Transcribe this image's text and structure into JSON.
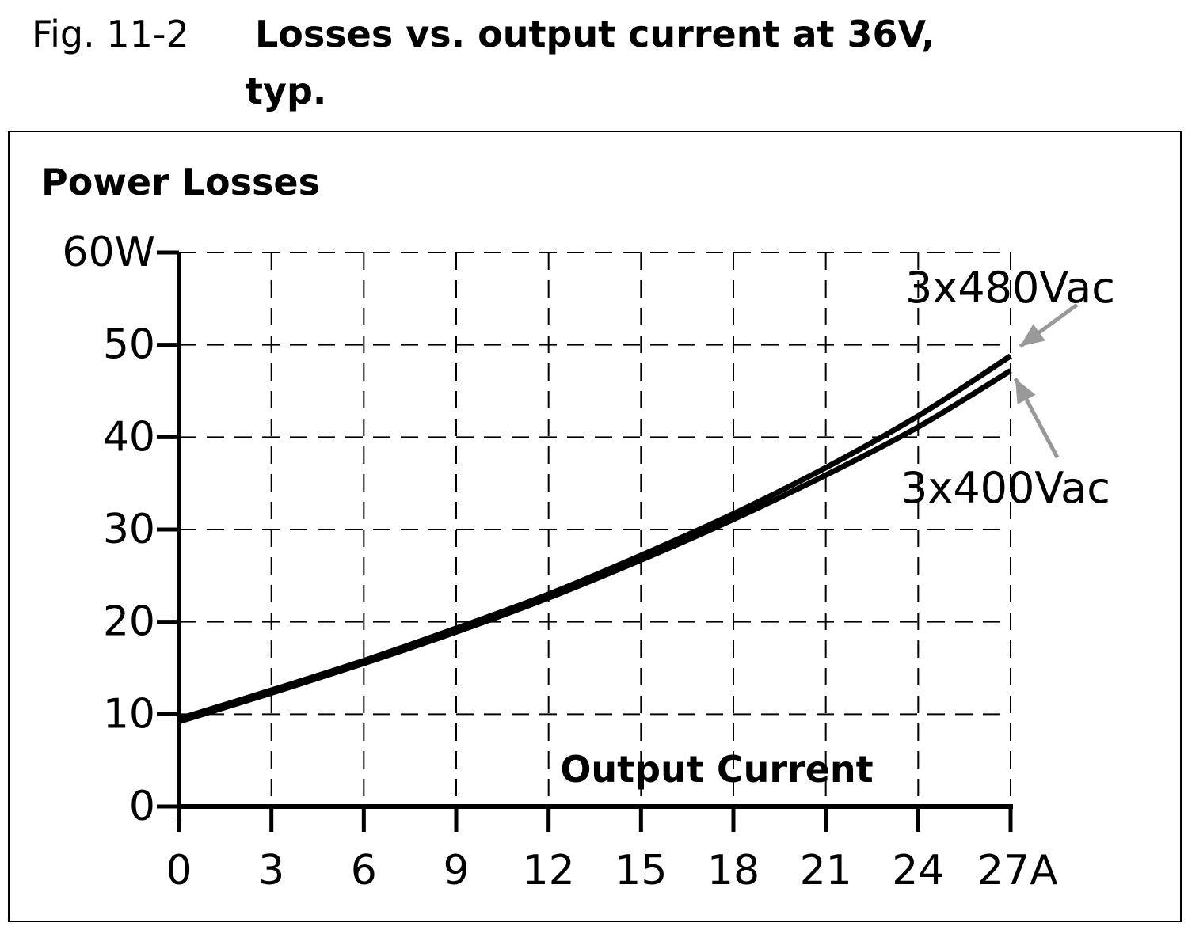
{
  "figure": {
    "number": "Fig. 11-2",
    "title_line1": "Losses vs. output current at 36V,",
    "title_line2": "typ."
  },
  "chart_data": {
    "type": "line",
    "ylabel": "Power Losses",
    "xlabel": "Output Current",
    "x_ticks": [
      "0",
      "3",
      "6",
      "9",
      "12",
      "15",
      "18",
      "21",
      "24",
      "27A"
    ],
    "y_ticks": [
      "0",
      "10",
      "20",
      "30",
      "40",
      "50",
      "60W"
    ],
    "xlim": [
      0,
      27
    ],
    "ylim": [
      0,
      60
    ],
    "x_unit": "A",
    "y_unit": "W",
    "grid": true,
    "series": [
      {
        "name": "3x480Vac",
        "x": [
          0,
          3,
          6,
          9,
          12,
          15,
          18,
          21,
          24,
          27
        ],
        "y": [
          9.5,
          12.6,
          15.8,
          19.3,
          23.0,
          27.2,
          31.7,
          36.7,
          42.3,
          48.8
        ]
      },
      {
        "name": "3x400Vac",
        "x": [
          0,
          3,
          6,
          9,
          12,
          15,
          18,
          21,
          24,
          27
        ],
        "y": [
          9.2,
          12.3,
          15.5,
          18.9,
          22.6,
          26.7,
          31.1,
          35.9,
          41.1,
          47.2
        ]
      }
    ],
    "annotation_color": "#999999",
    "line_color": "#000000"
  }
}
